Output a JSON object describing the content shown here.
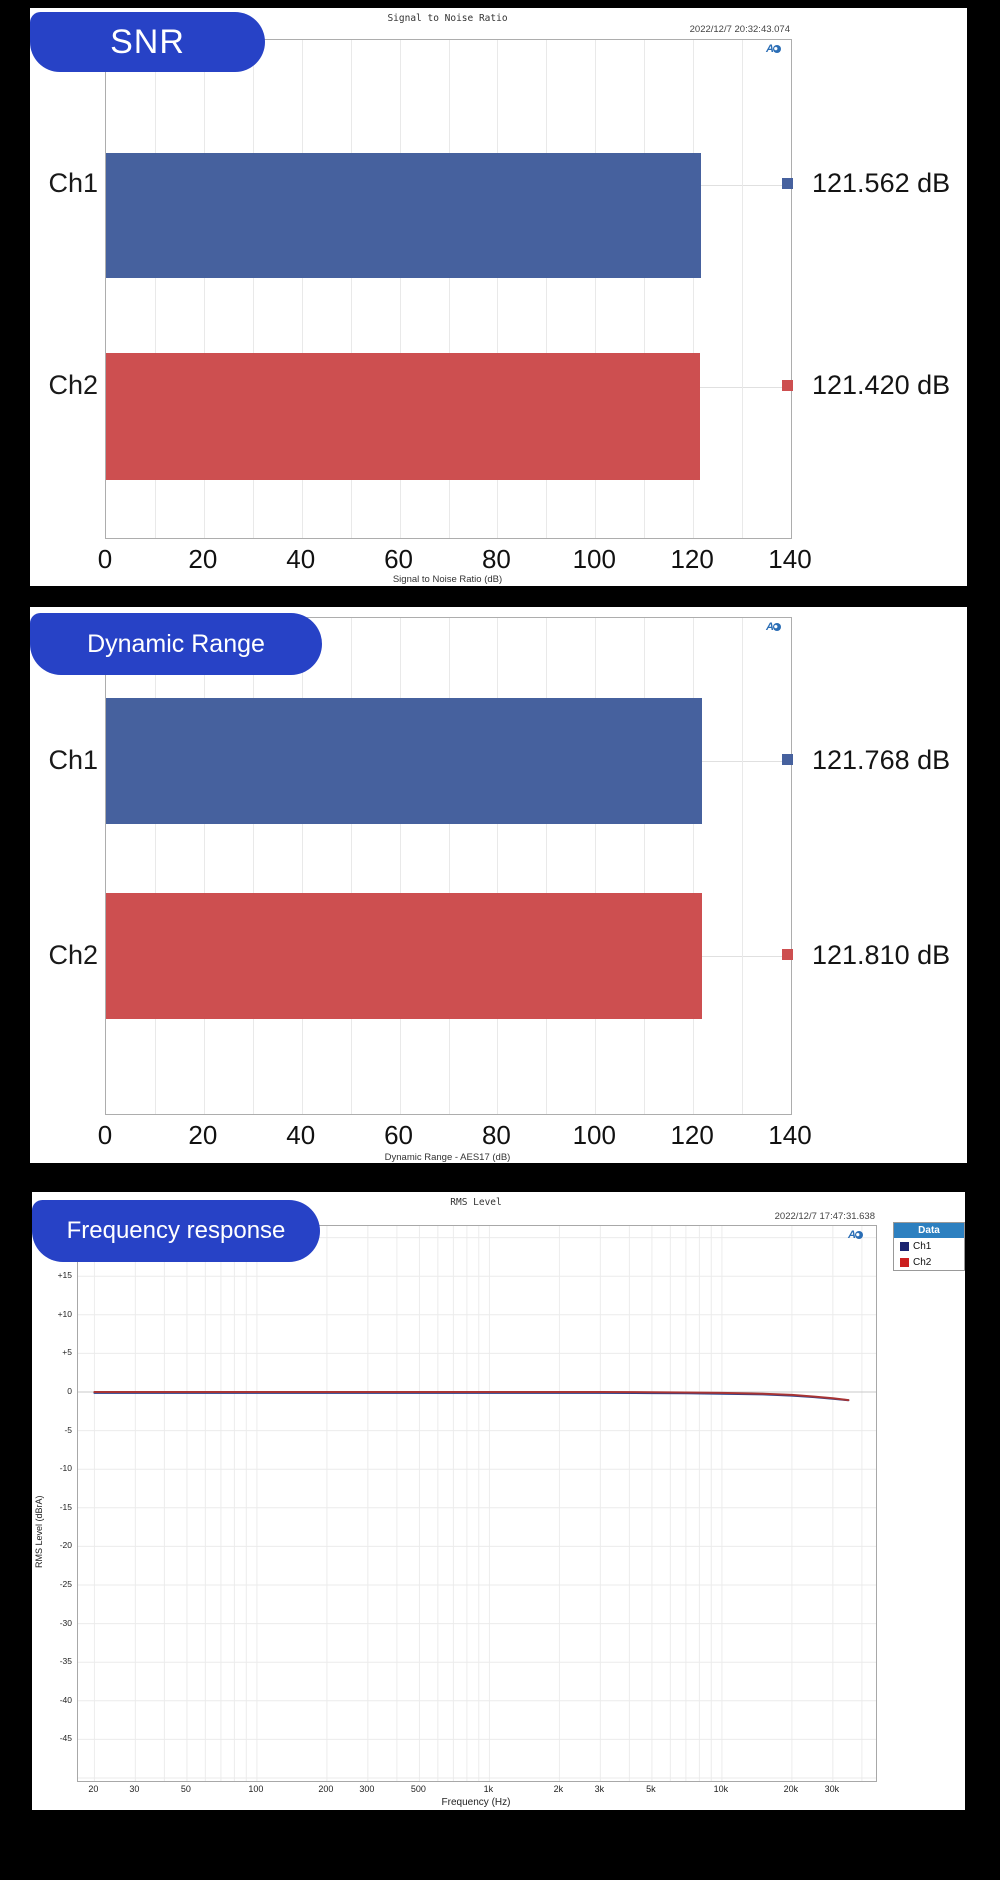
{
  "colors": {
    "background": "#000000",
    "card": "#ffffff",
    "badge_blue": "#2742c6",
    "bar_blue": "#46619e",
    "bar_red": "#cd4f50",
    "legend_header_blue": "#2d80c0",
    "curve_blue": "#27418f",
    "curve_red": "#a83434"
  },
  "icons": {
    "ap_logo_text": "A"
  },
  "panels": {
    "snr": {
      "badge": "SNR"
    },
    "dynamic_range": {
      "badge": "Dynamic Range"
    },
    "frequency_response": {
      "badge": "Frequency response"
    }
  },
  "chart_data": [
    {
      "id": "snr",
      "type": "bar",
      "orientation": "horizontal",
      "title": "Signal to Noise Ratio",
      "timestamp": "2022/12/7 20:32:43.074",
      "categories": [
        "Ch1",
        "Ch2"
      ],
      "values": [
        121.562,
        121.42
      ],
      "value_labels": [
        "121.562 dB",
        "121.420 dB"
      ],
      "series_colors": [
        "#46619e",
        "#cd4f50"
      ],
      "xlabel": "Signal to Noise Ratio (dB)",
      "xlim": [
        0,
        140
      ],
      "xticks": [
        0,
        20,
        40,
        60,
        80,
        100,
        120,
        140
      ],
      "grid_step": 10,
      "grid": true,
      "legend_position": "none"
    },
    {
      "id": "dynamic_range",
      "type": "bar",
      "orientation": "horizontal",
      "title": "",
      "timestamp": "",
      "categories": [
        "Ch1",
        "Ch2"
      ],
      "values": [
        121.768,
        121.81
      ],
      "value_labels": [
        "121.768 dB",
        "121.810 dB"
      ],
      "series_colors": [
        "#46619e",
        "#cd4f50"
      ],
      "xlabel": "Dynamic Range - AES17 (dB)",
      "xlim": [
        0,
        140
      ],
      "xticks": [
        0,
        20,
        40,
        60,
        80,
        100,
        120,
        140
      ],
      "grid_step": 10,
      "grid": true,
      "legend_position": "none"
    },
    {
      "id": "frequency_response",
      "type": "line",
      "title": "RMS Level",
      "timestamp": "2022/12/7 17:47:31.638",
      "xlabel": "Frequency (Hz)",
      "ylabel": "RMS Level (dBrA)",
      "x_scale": "log",
      "xlim": [
        17,
        46000
      ],
      "ylim": [
        -50,
        21
      ],
      "xtick_labels": [
        "20",
        "30",
        "50",
        "100",
        "200",
        "300",
        "500",
        "1k",
        "2k",
        "3k",
        "5k",
        "10k",
        "20k",
        "30k"
      ],
      "xtick_values": [
        20,
        30,
        50,
        100,
        200,
        300,
        500,
        1000,
        2000,
        3000,
        5000,
        10000,
        20000,
        30000
      ],
      "ytick_labels": [
        "+15",
        "+10",
        "+5",
        "0",
        "-5",
        "-10",
        "-15",
        "-20",
        "-25",
        "-30",
        "-35",
        "-40",
        "-45"
      ],
      "ytick_values": [
        15,
        10,
        5,
        0,
        -5,
        -10,
        -15,
        -20,
        -25,
        -30,
        -35,
        -40,
        -45
      ],
      "grid": true,
      "legend": {
        "header": "Data",
        "position": "top-right",
        "entries": [
          {
            "label": "Ch1",
            "color": "#1a2370"
          },
          {
            "label": "Ch2",
            "color": "#cc2020"
          }
        ]
      },
      "series": [
        {
          "name": "Ch1",
          "color": "#27418f",
          "x": [
            20,
            30,
            50,
            100,
            200,
            500,
            1000,
            2000,
            3000,
            5000,
            7000,
            10000,
            15000,
            20000,
            25000,
            30000,
            35000
          ],
          "y": [
            0,
            0,
            0,
            0,
            0,
            0,
            0,
            0,
            0,
            -0.02,
            -0.05,
            -0.1,
            -0.2,
            -0.35,
            -0.55,
            -0.75,
            -0.95
          ]
        },
        {
          "name": "Ch2",
          "color": "#a83434",
          "x": [
            20,
            30,
            50,
            100,
            200,
            500,
            1000,
            2000,
            3000,
            5000,
            7000,
            10000,
            15000,
            20000,
            25000,
            30000,
            35000
          ],
          "y": [
            0,
            0,
            0,
            0,
            0,
            0,
            0,
            0,
            0,
            -0.03,
            -0.06,
            -0.12,
            -0.22,
            -0.38,
            -0.6,
            -0.8,
            -1.05
          ]
        }
      ]
    }
  ]
}
